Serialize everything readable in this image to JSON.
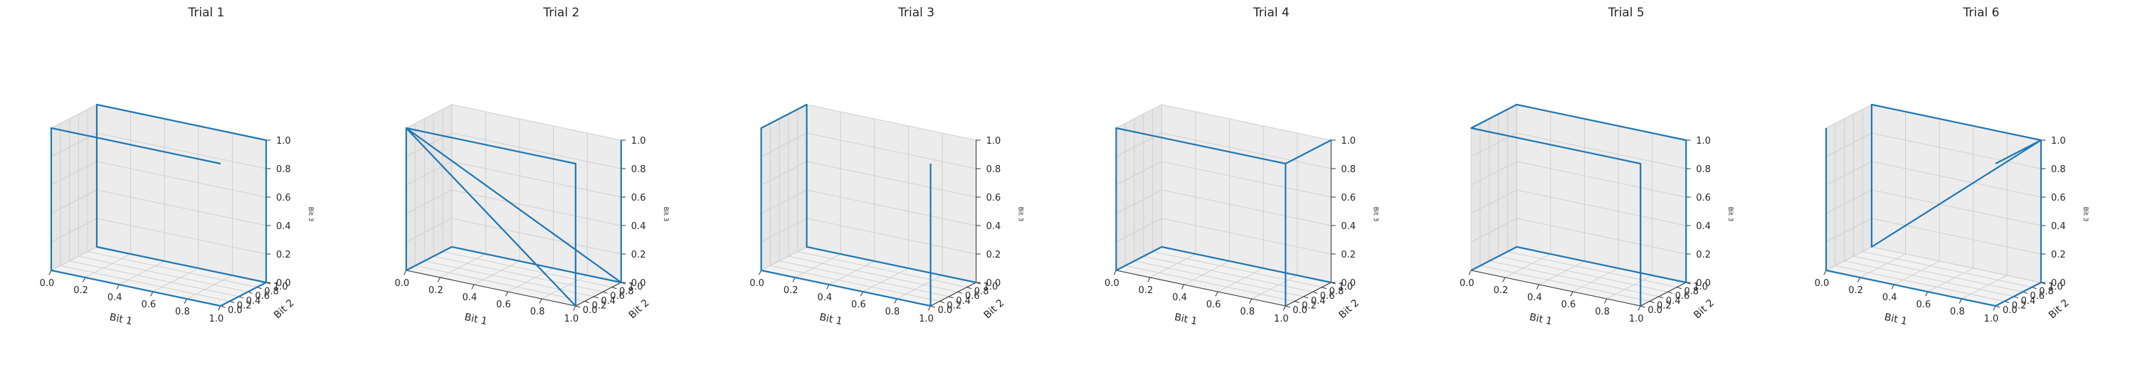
{
  "chart_data": [
    {
      "type": "line3d",
      "title": "Trial 1",
      "xlabel": "Bit 1",
      "ylabel": "Bit 2",
      "zlabel": "Bit 3",
      "xlim": [
        0,
        1
      ],
      "ylim": [
        0,
        1
      ],
      "zlim": [
        0,
        1
      ],
      "xticks": [
        "0.0",
        "0.2",
        "0.4",
        "0.6",
        "0.8",
        "1.0"
      ],
      "yticks": [
        "0.0",
        "0.2",
        "0.4",
        "0.6",
        "0.8",
        "1.0"
      ],
      "zticks": [
        "0.0",
        "0.2",
        "0.4",
        "0.6",
        "0.8",
        "1.0"
      ],
      "grid": true,
      "series": [
        {
          "color": "#1f77b4",
          "points": [
            [
              1,
              0,
              1
            ],
            [
              0,
              0,
              1
            ],
            [
              0,
              0,
              0
            ],
            [
              1,
              0,
              0
            ],
            [
              1,
              1,
              0
            ],
            [
              1,
              1,
              1
            ],
            [
              0,
              1,
              1
            ],
            [
              0,
              1,
              0
            ],
            [
              1,
              1,
              0
            ]
          ]
        }
      ]
    },
    {
      "type": "line3d",
      "title": "Trial 2",
      "xlabel": "Bit 1",
      "ylabel": "Bit 2",
      "zlabel": "Bit 3",
      "xlim": [
        0,
        1
      ],
      "ylim": [
        0,
        1
      ],
      "zlim": [
        0,
        1
      ],
      "xticks": [
        "0.0",
        "0.2",
        "0.4",
        "0.6",
        "0.8",
        "1.0"
      ],
      "yticks": [
        "0.0",
        "0.2",
        "0.4",
        "0.6",
        "0.8",
        "1.0"
      ],
      "zticks": [
        "0.0",
        "0.2",
        "0.4",
        "0.6",
        "0.8",
        "1.0"
      ],
      "grid": true,
      "series": [
        {
          "color": "#1f77b4",
          "points": [
            [
              1,
              1,
              1
            ],
            [
              1,
              1,
              0
            ],
            [
              0,
              1,
              0
            ],
            [
              0,
              0,
              0
            ],
            [
              0,
              0,
              1
            ],
            [
              1,
              0,
              1
            ],
            [
              1,
              0,
              0
            ],
            [
              0,
              0,
              1
            ],
            [
              1,
              1,
              0
            ]
          ]
        }
      ]
    },
    {
      "type": "line3d",
      "title": "Trial 3",
      "xlabel": "Bit 1",
      "ylabel": "Bit 2",
      "zlabel": "Bit 3",
      "xlim": [
        0,
        1
      ],
      "ylim": [
        0,
        1
      ],
      "zlim": [
        0,
        1
      ],
      "xticks": [
        "0.0",
        "0.2",
        "0.4",
        "0.6",
        "0.8",
        "1.0"
      ],
      "yticks": [
        "0.0",
        "0.2",
        "0.4",
        "0.6",
        "0.8",
        "1.0"
      ],
      "zticks": [
        "0.0",
        "0.2",
        "0.4",
        "0.6",
        "0.8",
        "1.0"
      ],
      "grid": true,
      "series": [
        {
          "color": "#1f77b4",
          "points": [
            [
              1,
              1,
              0
            ],
            [
              0,
              1,
              0
            ],
            [
              0,
              1,
              1
            ],
            [
              0,
              0,
              1
            ],
            [
              0,
              0,
              0
            ],
            [
              1,
              0,
              0
            ],
            [
              1,
              0,
              1
            ]
          ]
        }
      ]
    },
    {
      "type": "line3d",
      "title": "Trial 4",
      "xlabel": "Bit 1",
      "ylabel": "Bit 2",
      "zlabel": "Bit 3",
      "xlim": [
        0,
        1
      ],
      "ylim": [
        0,
        1
      ],
      "zlim": [
        0,
        1
      ],
      "xticks": [
        "0.0",
        "0.2",
        "0.4",
        "0.6",
        "0.8",
        "1.0"
      ],
      "yticks": [
        "0.0",
        "0.2",
        "0.4",
        "0.6",
        "0.8",
        "1.0"
      ],
      "zticks": [
        "0.0",
        "0.2",
        "0.4",
        "0.6",
        "0.8",
        "1.0"
      ],
      "grid": true,
      "series": [
        {
          "color": "#1f77b4",
          "points": [
            [
              1,
              1,
              0
            ],
            [
              0,
              1,
              0
            ],
            [
              0,
              0,
              0
            ],
            [
              0,
              0,
              1
            ],
            [
              1,
              0,
              1
            ],
            [
              1,
              1,
              1
            ],
            [
              1,
              0,
              1
            ],
            [
              1,
              0,
              0
            ]
          ]
        }
      ]
    },
    {
      "type": "line3d",
      "title": "Trial 5",
      "xlabel": "Bit 1",
      "ylabel": "Bit 2",
      "zlabel": "Bit 3",
      "xlim": [
        0,
        1
      ],
      "ylim": [
        0,
        1
      ],
      "zlim": [
        0,
        1
      ],
      "xticks": [
        "0.0",
        "0.2",
        "0.4",
        "0.6",
        "0.8",
        "1.0"
      ],
      "yticks": [
        "0.0",
        "0.2",
        "0.4",
        "0.6",
        "0.8",
        "1.0"
      ],
      "zticks": [
        "0.0",
        "0.2",
        "0.4",
        "0.6",
        "0.8",
        "1.0"
      ],
      "grid": true,
      "series": [
        {
          "color": "#1f77b4",
          "points": [
            [
              1,
              0,
              0
            ],
            [
              1,
              0,
              1
            ],
            [
              0,
              0,
              1
            ],
            [
              0,
              1,
              1
            ],
            [
              1,
              1,
              1
            ],
            [
              1,
              1,
              0
            ],
            [
              0,
              1,
              0
            ],
            [
              0,
              0,
              0
            ]
          ]
        }
      ]
    },
    {
      "type": "line3d",
      "title": "Trial 6",
      "xlabel": "Bit 1",
      "ylabel": "Bit 2",
      "zlabel": "Bit 3",
      "xlim": [
        0,
        1
      ],
      "ylim": [
        0,
        1
      ],
      "zlim": [
        0,
        1
      ],
      "xticks": [
        "0.0",
        "0.2",
        "0.4",
        "0.6",
        "0.8",
        "1.0"
      ],
      "yticks": [
        "0.0",
        "0.2",
        "0.4",
        "0.6",
        "0.8",
        "1.0"
      ],
      "zticks": [
        "0.0",
        "0.2",
        "0.4",
        "0.6",
        "0.8",
        "1.0"
      ],
      "grid": true,
      "series": [
        {
          "color": "#1f77b4",
          "points": [
            [
              0,
              0,
              1
            ],
            [
              0,
              0,
              0
            ],
            [
              1,
              0,
              0
            ],
            [
              1,
              1,
              0
            ],
            [
              1,
              1,
              1
            ],
            [
              0,
              1,
              1
            ],
            [
              0,
              1,
              0
            ],
            [
              1,
              1,
              1
            ],
            [
              1,
              0,
              1
            ]
          ]
        }
      ]
    }
  ]
}
